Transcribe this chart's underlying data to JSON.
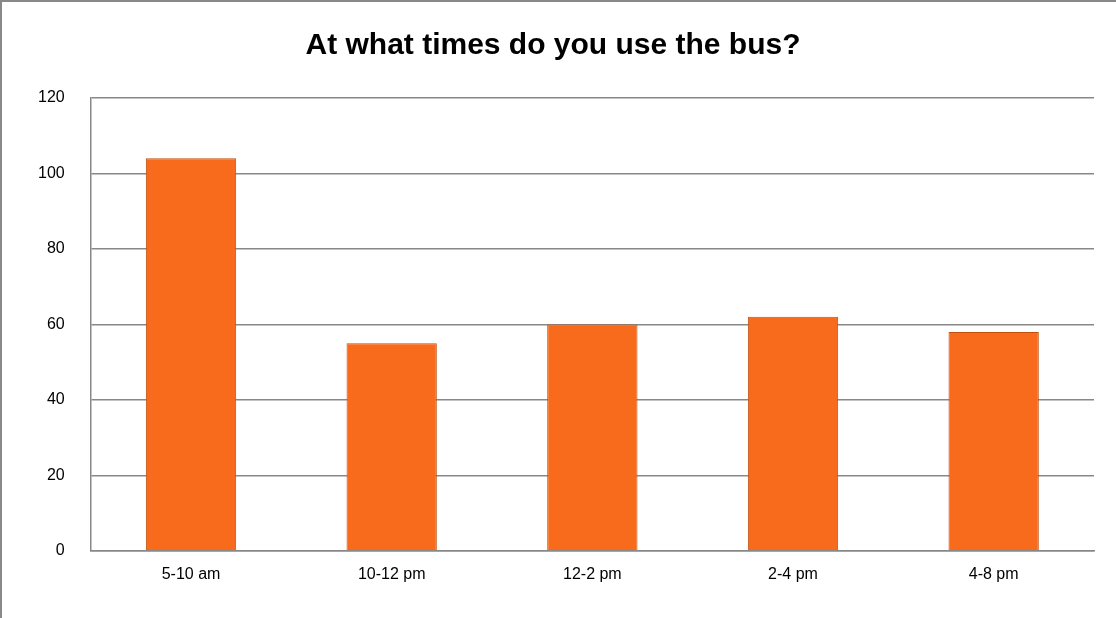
{
  "chart_data": {
    "type": "bar",
    "title": "At what times do you use the bus?",
    "categories": [
      "5-10 am",
      "10-12 pm",
      "12-2 pm",
      "2-4 pm",
      "4-8 pm"
    ],
    "values": [
      104,
      55,
      60,
      62,
      58
    ],
    "color": "#f96b1c",
    "ylim": [
      0,
      120
    ],
    "yticks": [
      0,
      20,
      40,
      60,
      80,
      100,
      120
    ],
    "grid": "y",
    "legend": false
  }
}
